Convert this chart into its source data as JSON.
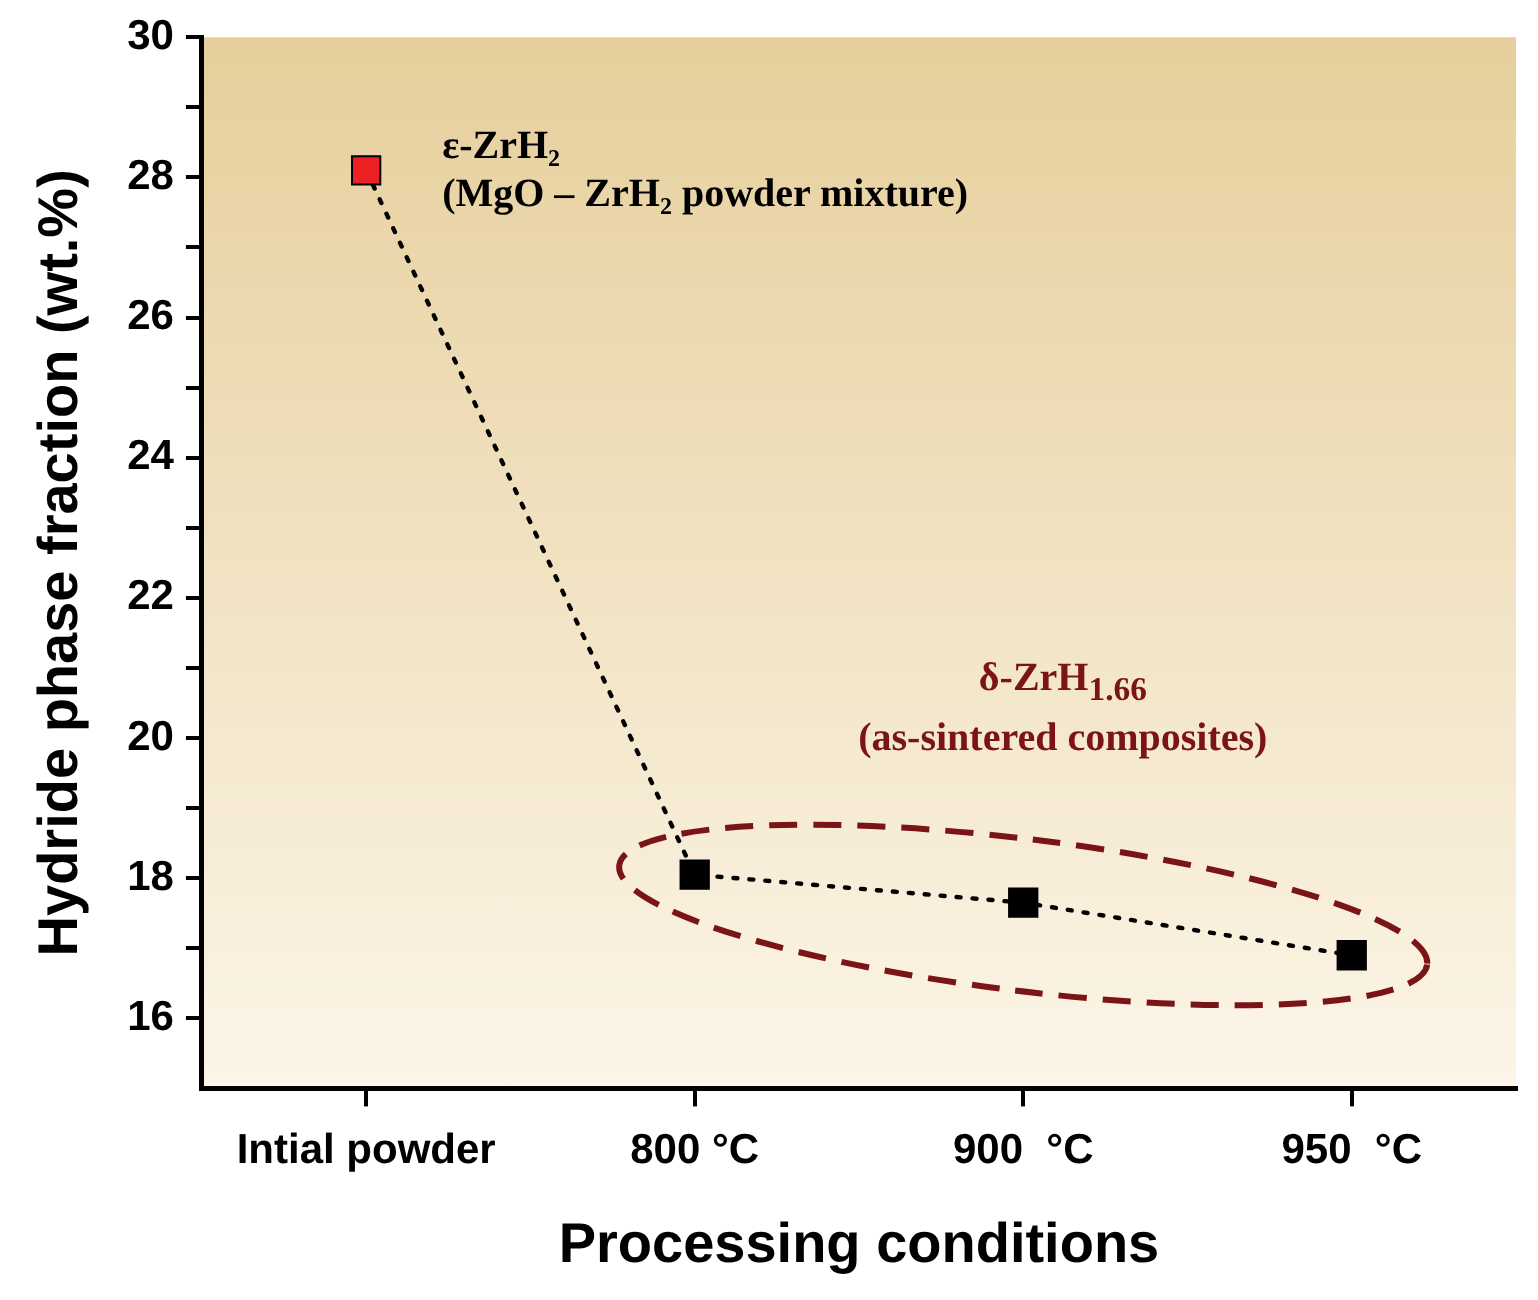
{
  "chart_data": {
    "type": "line",
    "xlabel": "Processing conditions",
    "ylabel": "Hydride phase fraction (wt.%)",
    "categories": [
      "Intial powder",
      "800 °C",
      "900  °C",
      "950  °C"
    ],
    "series": [
      {
        "colors": [
          "#ed2024",
          "#000000",
          "#000000",
          "#000000"
        ],
        "color": "#000000",
        "values": [
          28.1,
          18.05,
          17.65,
          16.9
        ]
      }
    ],
    "ylim": [
      15,
      30
    ],
    "yticks": [
      16,
      {
        "value": 17,
        "label": null
      },
      18,
      {
        "value": 19,
        "label": null
      },
      20,
      {
        "value": 21,
        "label": null
      },
      22,
      {
        "value": 23,
        "label": null
      },
      24,
      {
        "value": 25,
        "label": null
      },
      26,
      {
        "value": 27,
        "label": null
      },
      28,
      {
        "value": 29,
        "label": null
      },
      30
    ],
    "annotations": [
      {
        "text": "ε-ZrH₂\n(MgO – ZrH₂ powder mixture)",
        "x": "Intial powder",
        "y": 28.1
      },
      "δ-ZrH$_{1.66}$\n(as-sintered composites)"
    ],
    "grid": false,
    "legend": false,
    "marker": "square",
    "line_style": "dotted"
  }
}
